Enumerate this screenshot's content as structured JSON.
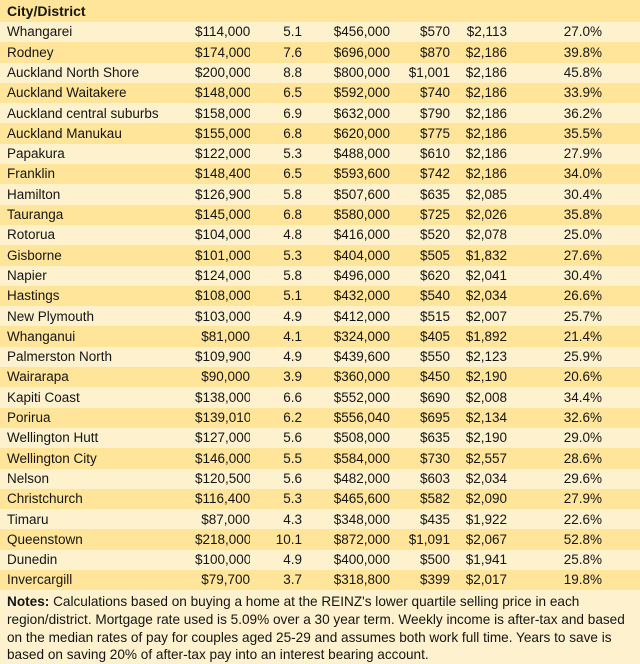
{
  "chart_data": {
    "type": "table",
    "title": "",
    "columns": [
      "City/District",
      "",
      "",
      "",
      "",
      "",
      ""
    ],
    "rows": [
      [
        "Whangarei",
        "$114,000",
        "5.1",
        "$456,000",
        "$570",
        "$2,113",
        "27.0%"
      ],
      [
        "Rodney",
        "$174,000",
        "7.6",
        "$696,000",
        "$870",
        "$2,186",
        "39.8%"
      ],
      [
        "Auckland North Shore",
        "$200,000",
        "8.8",
        "$800,000",
        "$1,001",
        "$2,186",
        "45.8%"
      ],
      [
        "Auckland Waitakere",
        "$148,000",
        "6.5",
        "$592,000",
        "$740",
        "$2,186",
        "33.9%"
      ],
      [
        "Auckland central suburbs",
        "$158,000",
        "6.9",
        "$632,000",
        "$790",
        "$2,186",
        "36.2%"
      ],
      [
        "Auckland Manukau",
        "$155,000",
        "6.8",
        "$620,000",
        "$775",
        "$2,186",
        "35.5%"
      ],
      [
        "Papakura",
        "$122,000",
        "5.3",
        "$488,000",
        "$610",
        "$2,186",
        "27.9%"
      ],
      [
        "Franklin",
        "$148,400",
        "6.5",
        "$593,600",
        "$742",
        "$2,186",
        "34.0%"
      ],
      [
        "Hamilton",
        "$126,900",
        "5.8",
        "$507,600",
        "$635",
        "$2,085",
        "30.4%"
      ],
      [
        "Tauranga",
        "$145,000",
        "6.8",
        "$580,000",
        "$725",
        "$2,026",
        "35.8%"
      ],
      [
        "Rotorua",
        "$104,000",
        "4.8",
        "$416,000",
        "$520",
        "$2,078",
        "25.0%"
      ],
      [
        "Gisborne",
        "$101,000",
        "5.3",
        "$404,000",
        "$505",
        "$1,832",
        "27.6%"
      ],
      [
        "Napier",
        "$124,000",
        "5.8",
        "$496,000",
        "$620",
        "$2,041",
        "30.4%"
      ],
      [
        "Hastings",
        "$108,000",
        "5.1",
        "$432,000",
        "$540",
        "$2,034",
        "26.6%"
      ],
      [
        "New Plymouth",
        "$103,000",
        "4.9",
        "$412,000",
        "$515",
        "$2,007",
        "25.7%"
      ],
      [
        "Whanganui",
        "$81,000",
        "4.1",
        "$324,000",
        "$405",
        "$1,892",
        "21.4%"
      ],
      [
        "Palmerston North",
        "$109,900",
        "4.9",
        "$439,600",
        "$550",
        "$2,123",
        "25.9%"
      ],
      [
        "Wairarapa",
        "$90,000",
        "3.9",
        "$360,000",
        "$450",
        "$2,190",
        "20.6%"
      ],
      [
        "Kapiti Coast",
        "$138,000",
        "6.6",
        "$552,000",
        "$690",
        "$2,008",
        "34.4%"
      ],
      [
        "Porirua",
        "$139,010",
        "6.2",
        "$556,040",
        "$695",
        "$2,134",
        "32.6%"
      ],
      [
        "Wellington Hutt",
        "$127,000",
        "5.6",
        "$508,000",
        "$635",
        "$2,190",
        "29.0%"
      ],
      [
        "Wellington City",
        "$146,000",
        "5.5",
        "$584,000",
        "$730",
        "$2,557",
        "28.6%"
      ],
      [
        "Nelson",
        "$120,500",
        "5.6",
        "$482,000",
        "$603",
        "$2,034",
        "29.6%"
      ],
      [
        "Christchurch",
        "$116,400",
        "5.3",
        "$465,600",
        "$582",
        "$2,090",
        "27.9%"
      ],
      [
        "Timaru",
        "$87,000",
        "4.3",
        "$348,000",
        "$435",
        "$1,922",
        "22.6%"
      ],
      [
        "Queenstown",
        "$218,000",
        "10.1",
        "$872,000",
        "$1,091",
        "$2,067",
        "52.8%"
      ],
      [
        "Dunedin",
        "$100,000",
        "4.9",
        "$400,000",
        "$500",
        "$1,941",
        "25.8%"
      ],
      [
        "Invercargill",
        "$79,700",
        "3.7",
        "$318,800",
        "$399",
        "$2,017",
        "19.8%"
      ]
    ],
    "layout": {
      "header_bg": "#ffe599",
      "row_bg": "#fdf2cd",
      "row_alt_bg": "#ffe599",
      "bottom_border": "#ddbd6e",
      "grid": false
    }
  },
  "notes": {
    "label": "Notes:",
    "text": " Calculations based on buying a home at the REINZ's lower quartile selling price in each region/district. Mortgage rate used is 5.09% over a 30 year term.  Weekly income is after-tax and based on the median rates of pay for couples aged 25-29 and assumes both work full time. Years to save is based on saving 20% of after-tax pay into an interest bearing account."
  }
}
